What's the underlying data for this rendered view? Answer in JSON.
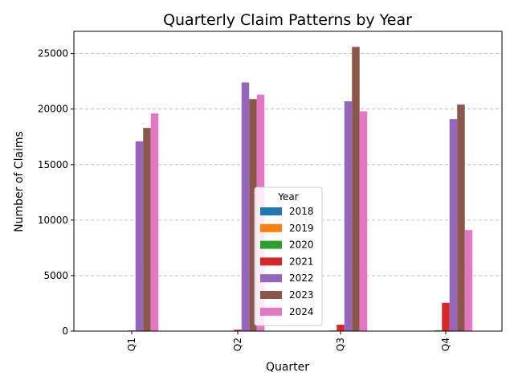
{
  "chart_data": {
    "type": "bar",
    "title": "Quarterly Claim Patterns by Year",
    "xlabel": "Quarter",
    "ylabel": "Number of Claims",
    "categories": [
      "Q1",
      "Q2",
      "Q3",
      "Q4"
    ],
    "ylim": [
      0,
      27000
    ],
    "yticks": [
      0,
      5000,
      10000,
      15000,
      20000,
      25000
    ],
    "grid": "y-dashed",
    "legend": {
      "title": "Year",
      "placement": "lower-center"
    },
    "series": [
      {
        "name": "2018",
        "color": "#1f77b4",
        "values": [
          0,
          0,
          0,
          0
        ]
      },
      {
        "name": "2019",
        "color": "#ff7f0e",
        "values": [
          0,
          0,
          0,
          0
        ]
      },
      {
        "name": "2020",
        "color": "#2ca02c",
        "values": [
          0,
          0,
          60,
          70
        ]
      },
      {
        "name": "2021",
        "color": "#d62728",
        "values": [
          60,
          130,
          580,
          2550
        ]
      },
      {
        "name": "2022",
        "color": "#9467bd",
        "values": [
          17100,
          22400,
          20700,
          19100
        ]
      },
      {
        "name": "2023",
        "color": "#8c564b",
        "values": [
          18300,
          20900,
          25600,
          20400
        ]
      },
      {
        "name": "2024",
        "color": "#e377c2",
        "values": [
          19600,
          21300,
          19800,
          9100
        ]
      }
    ]
  }
}
